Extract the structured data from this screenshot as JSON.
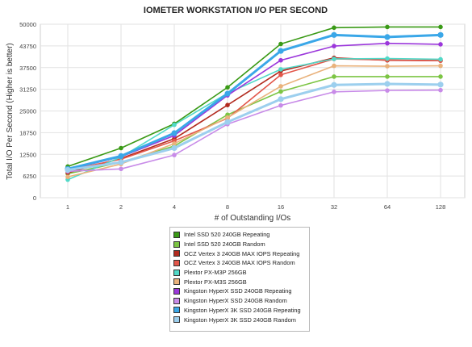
{
  "chart_data": {
    "type": "line",
    "title": "IOMETER WORKSTATION I/O PER SECOND",
    "xlabel": "# of Outstanding I/Os",
    "ylabel": "Total I/O Per Second (Higher is better)",
    "categories": [
      "1",
      "2",
      "4",
      "8",
      "16",
      "32",
      "64",
      "128"
    ],
    "yticks": [
      "0",
      "6250",
      "12500",
      "18750",
      "25000",
      "31250",
      "37500",
      "43750",
      "50000"
    ],
    "ylim": [
      0,
      50000
    ],
    "grid": true,
    "legend_position": "bottom",
    "series": [
      {
        "name": "Intel SSD 520 240GB Repeating",
        "color": "#3a9a16",
        "values": [
          9000,
          14300,
          21300,
          31800,
          44300,
          49000,
          49200,
          49200
        ]
      },
      {
        "name": "Intel SSD 520 240GB Random",
        "color": "#7cc544",
        "values": [
          6900,
          10200,
          14900,
          23900,
          30600,
          34900,
          34900,
          34900
        ]
      },
      {
        "name": "OCZ Vertex 3 240GB MAX IOPS Repeating",
        "color": "#b22a1e",
        "values": [
          7200,
          11300,
          17000,
          26700,
          36500,
          40300,
          39600,
          39500
        ]
      },
      {
        "name": "OCZ Vertex 3 240GB MAX IOPS Random",
        "color": "#e2564a",
        "values": [
          7900,
          11100,
          16400,
          22900,
          35400,
          40000,
          39700,
          39500
        ]
      },
      {
        "name": "Plextor PX-M3P 256GB",
        "color": "#51d9c8",
        "values": [
          5200,
          11700,
          21000,
          30100,
          37000,
          40000,
          40100,
          39900
        ]
      },
      {
        "name": "Plextor PX-M3S 256GB",
        "color": "#e9b27c",
        "values": [
          6000,
          9700,
          15600,
          23100,
          32100,
          38000,
          37900,
          38000
        ]
      },
      {
        "name": "Kingston HyperX SSD 240GB Repeating",
        "color": "#9b37db",
        "values": [
          8100,
          11800,
          17900,
          29500,
          39600,
          43700,
          44500,
          44200
        ]
      },
      {
        "name": "Kingston HyperX SSD 240GB Random",
        "color": "#c88be8",
        "values": [
          7600,
          8300,
          12300,
          21200,
          26600,
          30500,
          30900,
          31000
        ]
      },
      {
        "name": "Kingston HyperX 3K SSD 240GB Repeating",
        "color": "#3aa7e8",
        "values": [
          8300,
          12000,
          18600,
          30000,
          42300,
          46900,
          46300,
          46900
        ]
      },
      {
        "name": "Kingston HyperX 3K SSD 240GB Random",
        "color": "#9ccfee",
        "values": [
          8000,
          10200,
          14300,
          21800,
          28400,
          32500,
          32800,
          32600
        ]
      }
    ]
  }
}
